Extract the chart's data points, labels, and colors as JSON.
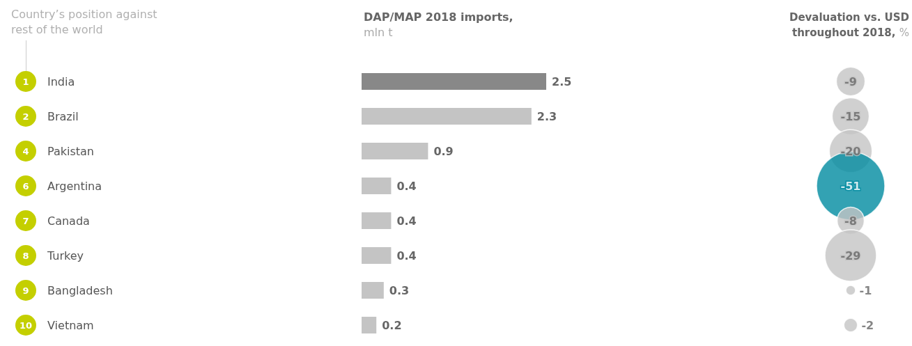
{
  "chart_data": [
    {
      "type": "bar",
      "orientation": "horizontal",
      "title": "DAP/MAP 2018 imports,",
      "subtitle": "mln t",
      "ylabel": "Country’s position against rest of the world",
      "categories": [
        "India",
        "Brazil",
        "Pakistan",
        "Argentina",
        "Canada",
        "Turkey",
        "Bangladesh",
        "Vietnam"
      ],
      "values": [
        2.5,
        2.3,
        0.9,
        0.4,
        0.4,
        0.4,
        0.3,
        0.2
      ],
      "colors": [
        "#888888",
        "#c4c4c4",
        "#c4c4c4",
        "#c4c4c4",
        "#c4c4c4",
        "#c4c4c4",
        "#c4c4c4",
        "#c4c4c4"
      ],
      "data_labels": true,
      "annotations": [
        "1",
        "2",
        "4",
        "6",
        "7",
        "8",
        "9",
        "10"
      ]
    },
    {
      "type": "other",
      "title": "Devaluation vs. USD throughout 2018,",
      "subtitle": "%",
      "categories": [
        null,
        null,
        null,
        null,
        null,
        null,
        null,
        null
      ],
      "values": [
        -9,
        -15,
        -20,
        -51,
        -8,
        -29,
        -1,
        -2
      ],
      "colors": [
        "#c4c4c4",
        "#c4c4c4",
        "#c4c4c4",
        "#008ba0",
        "#c4c4c4",
        "#c4c4c4",
        "#c4c4c4",
        "#c4c4c4"
      ],
      "data_labels": true
    }
  ]
}
